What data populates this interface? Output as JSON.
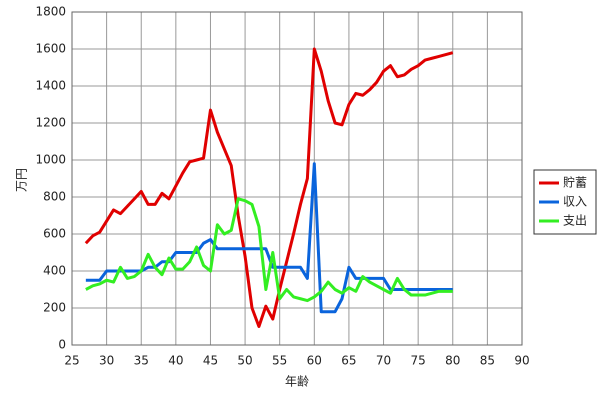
{
  "chart_data": {
    "type": "line",
    "xlabel": "年齢",
    "ylabel": "万円",
    "x": [
      27,
      28,
      29,
      30,
      31,
      32,
      33,
      34,
      35,
      36,
      37,
      38,
      39,
      40,
      41,
      42,
      43,
      44,
      45,
      46,
      47,
      48,
      49,
      50,
      51,
      52,
      53,
      54,
      55,
      56,
      57,
      58,
      59,
      60,
      61,
      62,
      63,
      64,
      65,
      66,
      67,
      68,
      69,
      70,
      71,
      72,
      73,
      74,
      75,
      76,
      77,
      78,
      79,
      80
    ],
    "series": [
      {
        "name": "貯蓄",
        "color": "#e00000",
        "values": [
          550,
          590,
          610,
          670,
          730,
          710,
          750,
          790,
          830,
          760,
          760,
          820,
          790,
          860,
          930,
          990,
          1000,
          1010,
          1270,
          1150,
          1060,
          970,
          700,
          480,
          200,
          100,
          210,
          140,
          300,
          450,
          600,
          760,
          900,
          1600,
          1480,
          1320,
          1200,
          1190,
          1300,
          1360,
          1350,
          1380,
          1420,
          1480,
          1510,
          1450,
          1460,
          1490,
          1510,
          1540,
          1550,
          1560,
          1570,
          1580
        ]
      },
      {
        "name": "収入",
        "color": "#0a64dc",
        "values": [
          350,
          350,
          350,
          400,
          400,
          400,
          400,
          400,
          400,
          420,
          420,
          450,
          450,
          500,
          500,
          500,
          500,
          550,
          570,
          520,
          520,
          520,
          520,
          520,
          520,
          520,
          520,
          420,
          420,
          420,
          420,
          420,
          360,
          980,
          180,
          180,
          180,
          250,
          420,
          360,
          360,
          360,
          360,
          360,
          300,
          300,
          300,
          300,
          300,
          300,
          300,
          300,
          300,
          300
        ]
      },
      {
        "name": "支出",
        "color": "#33ee22",
        "values": [
          300,
          320,
          330,
          350,
          340,
          420,
          360,
          370,
          400,
          490,
          420,
          380,
          470,
          410,
          410,
          450,
          530,
          430,
          400,
          650,
          600,
          620,
          790,
          780,
          760,
          640,
          300,
          500,
          250,
          300,
          260,
          250,
          240,
          260,
          290,
          340,
          300,
          280,
          310,
          290,
          370,
          340,
          320,
          300,
          280,
          360,
          300,
          270,
          270,
          270,
          280,
          290,
          290,
          290
        ]
      }
    ],
    "xlim": [
      25,
      90
    ],
    "xticks": [
      25,
      30,
      35,
      40,
      45,
      50,
      55,
      60,
      65,
      70,
      75,
      80,
      85,
      90
    ],
    "ylim": [
      0,
      1800
    ],
    "yticks": [
      0,
      200,
      400,
      600,
      800,
      1000,
      1200,
      1400,
      1600,
      1800
    ],
    "grid": true,
    "legend": "right"
  }
}
